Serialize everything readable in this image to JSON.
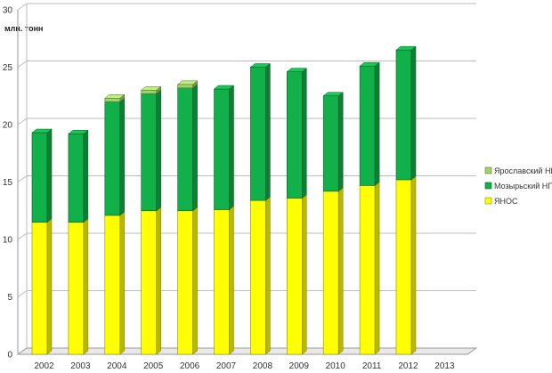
{
  "chart_data": {
    "type": "bar",
    "stacked": true,
    "three_d": true,
    "unit_label": "млн. тонн",
    "categories": [
      "2002",
      "2003",
      "2004",
      "2005",
      "2006",
      "2007",
      "2008",
      "2009",
      "2010",
      "2011",
      "2012",
      "2013"
    ],
    "series": [
      {
        "name": "ЯНОС",
        "color": "#ffff00",
        "values": [
          11.5,
          11.5,
          12.1,
          12.5,
          12.5,
          12.6,
          13.4,
          13.6,
          14.2,
          14.7,
          15.2,
          null
        ]
      },
      {
        "name": "Мозырьский НП",
        "color": "#12b04a",
        "values": [
          7.8,
          7.7,
          9.9,
          10.2,
          10.7,
          10.5,
          11.6,
          11.0,
          8.3,
          10.4,
          11.3,
          null
        ]
      },
      {
        "name": "Ярославский НПЗ",
        "color": "#a4d36a",
        "values": [
          0,
          0,
          0.3,
          0.3,
          0.3,
          0,
          0,
          0,
          0,
          0,
          0,
          null
        ]
      }
    ],
    "ylim": [
      0,
      30
    ],
    "yticks": [
      0,
      5,
      10,
      15,
      20,
      25,
      30
    ],
    "grid": true,
    "legend_position": "right"
  }
}
